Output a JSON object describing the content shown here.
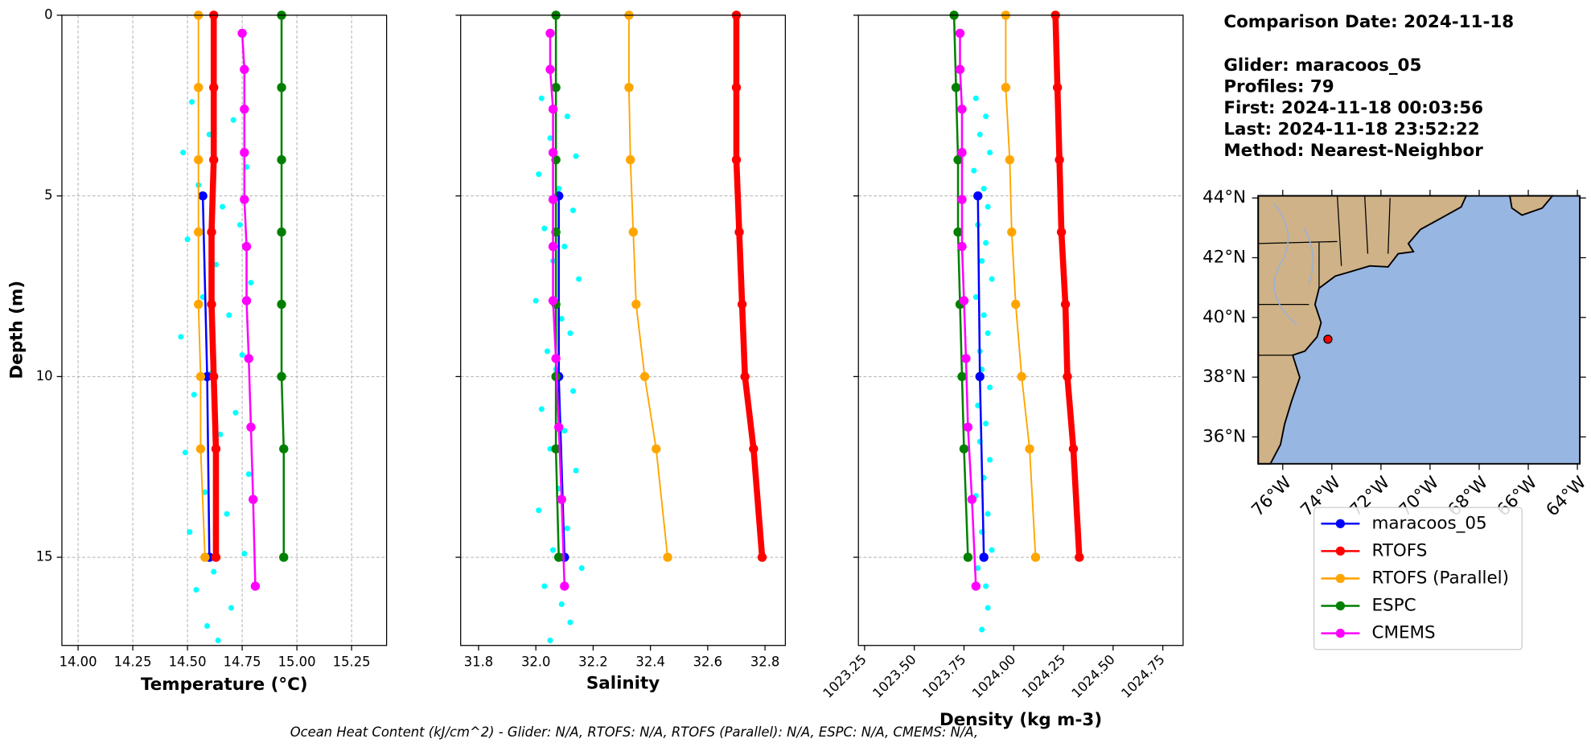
{
  "info": [
    "Comparison Date: 2024-11-18",
    "Glider: maracoos_05",
    "Profiles: 79",
    "First: 2024-11-18 00:03:56",
    "Last: 2024-11-18 23:52:22",
    "Method: Nearest-Neighbor"
  ],
  "footer": "Ocean Heat Content (kJ/cm^2) - Glider: N/A,  RTOFS: N/A,  RTOFS (Parallel): N/A,  ESPC: N/A,  CMEMS: N/A,",
  "legend": [
    {
      "name": "maracoos_05",
      "color": "#0000ff"
    },
    {
      "name": "RTOFS",
      "color": "#ff0000"
    },
    {
      "name": "RTOFS (Parallel)",
      "color": "#ffa500"
    },
    {
      "name": "ESPC",
      "color": "#008000"
    },
    {
      "name": "CMEMS",
      "color": "#ff00ff"
    }
  ],
  "chart_data": [
    {
      "type": "profile",
      "xlabel": "Temperature (°C)",
      "ylabel": "Depth (m)",
      "xlim": [
        13.926,
        15.41
      ],
      "ylim": [
        17.44,
        0
      ],
      "xticks": [
        {
          "value": 14,
          "label": "14.00"
        },
        14.25,
        {
          "value": 14.5,
          "label": "14.50"
        },
        14.75,
        {
          "value": 15,
          "label": "15.00"
        },
        15.25
      ],
      "yticks": [
        0,
        5,
        10,
        15
      ],
      "ytick_labels": true,
      "xtick_rotation": 0,
      "xgrid": true,
      "ygrid": true,
      "scatter": {
        "color": "#00ffff",
        "depth": [
          2.4,
          2.9,
          3.3,
          3.8,
          4.2,
          4.7,
          5.3,
          5.8,
          6.2,
          6.9,
          7.4,
          7.8,
          8.3,
          8.9,
          9.4,
          9.9,
          10.5,
          11.0,
          11.6,
          12.1,
          12.7,
          13.2,
          13.8,
          14.3,
          14.9,
          15.4,
          15.9,
          16.4,
          16.9,
          17.3
        ],
        "values": [
          14.52,
          14.71,
          14.6,
          14.48,
          14.77,
          14.55,
          14.66,
          14.74,
          14.5,
          14.63,
          14.79,
          14.57,
          14.69,
          14.47,
          14.75,
          14.61,
          14.53,
          14.72,
          14.65,
          14.49,
          14.78,
          14.58,
          14.68,
          14.51,
          14.76,
          14.62,
          14.54,
          14.7,
          14.59,
          14.64
        ]
      },
      "series": [
        {
          "color": "#0000ff",
          "linewidth": 2,
          "depth": [
            5,
            10,
            15
          ],
          "values": [
            14.57,
            14.59,
            14.6
          ]
        },
        {
          "color": "#ff0000",
          "linewidth": 6,
          "depth": [
            0,
            2,
            4,
            6,
            8,
            10,
            12,
            15
          ],
          "values": [
            14.62,
            14.62,
            14.62,
            14.61,
            14.61,
            14.62,
            14.63,
            14.63
          ]
        },
        {
          "color": "#ffa500",
          "linewidth": 1.5,
          "depth": [
            0,
            2,
            4,
            6,
            8,
            10,
            12,
            15
          ],
          "values": [
            14.55,
            14.55,
            14.55,
            14.55,
            14.55,
            14.56,
            14.56,
            14.58
          ]
        },
        {
          "color": "#008000",
          "linewidth": 2,
          "depth": [
            0,
            2,
            4,
            6,
            8,
            10,
            12,
            15
          ],
          "values": [
            14.93,
            14.93,
            14.93,
            14.93,
            14.93,
            14.93,
            14.94,
            14.94
          ]
        },
        {
          "color": "#ff00ff",
          "linewidth": 2,
          "depth": [
            0.5,
            1.5,
            2.6,
            3.8,
            5.1,
            6.4,
            7.9,
            9.5,
            11.4,
            13.4,
            15.8
          ],
          "values": [
            14.75,
            14.76,
            14.76,
            14.76,
            14.76,
            14.77,
            14.77,
            14.78,
            14.79,
            14.8,
            14.81
          ]
        }
      ]
    },
    {
      "type": "profile",
      "xlabel": "Salinity",
      "xlim": [
        31.7375,
        32.871
      ],
      "ylim": [
        17.44,
        0
      ],
      "xticks": [
        31.8,
        {
          "value": 32,
          "label": "32.0"
        },
        32.2,
        32.4,
        32.6,
        32.8
      ],
      "yticks": [
        0,
        5,
        10,
        15
      ],
      "ytick_labels": false,
      "xtick_rotation": 0,
      "xgrid": false,
      "ygrid": true,
      "scatter": {
        "color": "#00ffff",
        "depth": [
          2.3,
          2.8,
          3.4,
          3.9,
          4.4,
          4.8,
          5.4,
          5.9,
          6.4,
          6.8,
          7.3,
          7.9,
          8.4,
          8.8,
          9.3,
          9.8,
          10.4,
          10.9,
          11.5,
          12.0,
          12.6,
          13.1,
          13.7,
          14.2,
          14.8,
          15.3,
          15.8,
          16.3,
          16.8,
          17.3
        ],
        "values": [
          32.02,
          32.11,
          32.05,
          32.14,
          32.01,
          32.08,
          32.13,
          32.03,
          32.1,
          32.06,
          32.15,
          32.0,
          32.09,
          32.12,
          32.04,
          32.07,
          32.13,
          32.02,
          32.1,
          32.05,
          32.14,
          32.08,
          32.01,
          32.11,
          32.06,
          32.16,
          32.03,
          32.09,
          32.12,
          32.05
        ]
      },
      "series": [
        {
          "color": "#0000ff",
          "linewidth": 2,
          "depth": [
            5,
            10,
            15
          ],
          "values": [
            32.08,
            32.08,
            32.1
          ]
        },
        {
          "color": "#ff0000",
          "linewidth": 6,
          "depth": [
            0,
            2,
            4,
            6,
            8,
            10,
            12,
            15
          ],
          "values": [
            32.7,
            32.7,
            32.7,
            32.71,
            32.72,
            32.73,
            32.76,
            32.79
          ]
        },
        {
          "color": "#ffa500",
          "linewidth": 1.5,
          "depth": [
            0,
            2,
            4,
            6,
            8,
            10,
            12,
            15
          ],
          "values": [
            32.325,
            32.325,
            32.33,
            32.34,
            32.35,
            32.38,
            32.42,
            32.46
          ]
        },
        {
          "color": "#008000",
          "linewidth": 2,
          "depth": [
            0,
            2,
            4,
            6,
            8,
            10,
            12,
            15
          ],
          "values": [
            32.07,
            32.07,
            32.07,
            32.07,
            32.07,
            32.07,
            32.07,
            32.08
          ]
        },
        {
          "color": "#ff00ff",
          "linewidth": 2,
          "depth": [
            0.5,
            1.5,
            2.6,
            3.8,
            5.1,
            6.4,
            7.9,
            9.5,
            11.4,
            13.4,
            15.8
          ],
          "values": [
            32.05,
            32.05,
            32.06,
            32.06,
            32.06,
            32.06,
            32.06,
            32.07,
            32.08,
            32.09,
            32.1
          ]
        }
      ]
    },
    {
      "type": "profile",
      "xlabel": "Density (kg m-3)",
      "xlim": [
        1023.219,
        1024.852
      ],
      "ylim": [
        17.44,
        0
      ],
      "xticks": [
        1023.25,
        {
          "value": 1023.5,
          "label": "1023.50"
        },
        1023.75,
        {
          "value": 1024,
          "label": "1024.00"
        },
        1024.25,
        {
          "value": 1024.5,
          "label": "1024.50"
        },
        1024.75
      ],
      "yticks": [
        0,
        5,
        10,
        15
      ],
      "ytick_labels": false,
      "xtick_rotation": 45,
      "xgrid": false,
      "ygrid": true,
      "scatter": {
        "color": "#00ffff",
        "depth": [
          2.3,
          2.8,
          3.3,
          3.8,
          4.3,
          4.8,
          5.3,
          5.8,
          6.3,
          6.8,
          7.3,
          7.8,
          8.3,
          8.8,
          9.3,
          9.8,
          10.3,
          10.8,
          11.3,
          11.8,
          12.3,
          12.8,
          13.3,
          13.8,
          14.3,
          14.8,
          15.3,
          15.8,
          16.4,
          17.0
        ],
        "values": [
          1023.81,
          1023.86,
          1023.83,
          1023.88,
          1023.8,
          1023.85,
          1023.87,
          1023.82,
          1023.86,
          1023.84,
          1023.89,
          1023.81,
          1023.85,
          1023.87,
          1023.83,
          1023.84,
          1023.88,
          1023.82,
          1023.86,
          1023.83,
          1023.88,
          1023.85,
          1023.81,
          1023.87,
          1023.84,
          1023.89,
          1023.82,
          1023.86,
          1023.87,
          1023.84
        ]
      },
      "series": [
        {
          "color": "#0000ff",
          "linewidth": 2,
          "depth": [
            5,
            10,
            15
          ],
          "values": [
            1023.82,
            1023.83,
            1023.85
          ]
        },
        {
          "color": "#ff0000",
          "linewidth": 6,
          "depth": [
            0,
            2,
            4,
            6,
            8,
            10,
            12,
            15
          ],
          "values": [
            1024.21,
            1024.22,
            1024.23,
            1024.24,
            1024.26,
            1024.27,
            1024.3,
            1024.33
          ]
        },
        {
          "color": "#ffa500",
          "linewidth": 1.5,
          "depth": [
            0,
            2,
            4,
            6,
            8,
            10,
            12,
            15
          ],
          "values": [
            1023.96,
            1023.96,
            1023.98,
            1023.99,
            1024.01,
            1024.04,
            1024.08,
            1024.11
          ]
        },
        {
          "color": "#008000",
          "linewidth": 2,
          "depth": [
            0,
            2,
            4,
            6,
            8,
            10,
            12,
            15
          ],
          "values": [
            1023.7,
            1023.71,
            1023.72,
            1023.72,
            1023.73,
            1023.74,
            1023.75,
            1023.77
          ]
        },
        {
          "color": "#ff00ff",
          "linewidth": 2,
          "depth": [
            0.5,
            1.5,
            2.6,
            3.8,
            5.1,
            6.4,
            7.9,
            9.5,
            11.4,
            13.4,
            15.8
          ],
          "values": [
            1023.73,
            1023.73,
            1023.74,
            1023.74,
            1023.74,
            1023.74,
            1023.75,
            1023.76,
            1023.77,
            1023.79,
            1023.81
          ]
        }
      ]
    },
    {
      "type": "map",
      "xlim": [
        -77.0,
        -63.9
      ],
      "ylim": [
        35.1,
        44.07
      ],
      "xticks": [
        {
          "value": -76,
          "label": "76°W"
        },
        {
          "value": -74,
          "label": "74°W"
        },
        {
          "value": -72,
          "label": "72°W"
        },
        {
          "value": -70,
          "label": "70°W"
        },
        {
          "value": -68,
          "label": "68°W"
        },
        {
          "value": -66,
          "label": "66°W"
        },
        {
          "value": -64,
          "label": "64°W"
        }
      ],
      "yticks": [
        {
          "value": 36,
          "label": "36°N"
        },
        {
          "value": 38,
          "label": "38°N"
        },
        {
          "value": 40,
          "label": "40°N"
        },
        {
          "value": 42,
          "label": "42°N"
        },
        {
          "value": 44,
          "label": "44°N"
        }
      ],
      "xtick_rotation": 45,
      "ocean_color": "#98b6e2",
      "land_color": "#cfb287",
      "points": {
        "color": "#ff0000",
        "x": [
          -74.16
        ],
        "y": [
          39.27
        ]
      }
    }
  ]
}
